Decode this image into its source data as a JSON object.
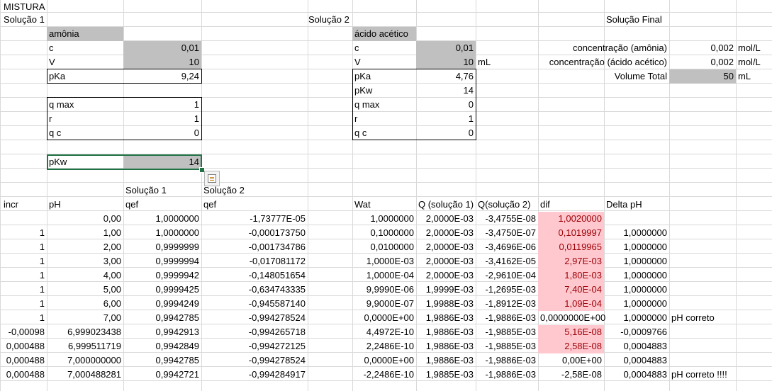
{
  "title": "MISTURA",
  "solucao1": {
    "label": "Solução 1",
    "substance": "amônia",
    "c_label": "c",
    "c": "0,01",
    "V_label": "V",
    "V": "10",
    "pKa_label": "pKa",
    "pKa": "9,24",
    "qmax_label": "q max",
    "qmax": "1",
    "r_label": "r",
    "r": "1",
    "qc_label": "q c",
    "qc": "0",
    "pKw_label": "pKw",
    "pKw": "14"
  },
  "solucao2": {
    "label": "Solução 2",
    "substance": "ácido acético",
    "c_label": "c",
    "c": "0,01",
    "V_label": "V",
    "V": "10",
    "V_unit": "mL",
    "pKa_label": "pKa",
    "pKa": "4,76",
    "pKw_label": "pKw",
    "pKw": "14",
    "qmax_label": "q max",
    "qmax": "0",
    "r_label": "r",
    "r": "1",
    "qc_label": "q c",
    "qc": "0"
  },
  "final": {
    "label": "Solução Final",
    "conc1_label": "concentração (amônia)",
    "conc1": "0,002",
    "conc1_unit": "mol/L",
    "conc2_label": "concentração (ácido acético)",
    "conc2": "0,002",
    "conc2_unit": "mol/L",
    "vol_label": "Volume Total",
    "vol": "50",
    "vol_unit": "mL"
  },
  "table": {
    "group_headers": {
      "solucao1": "Solução 1",
      "solucao2": "Solução 2"
    },
    "headers": [
      "incr",
      "pH",
      "qef",
      "qef",
      "Wat",
      "Q (solução 1)",
      "Q(solução 2)",
      "dif",
      "Delta pH"
    ],
    "rows": [
      [
        "",
        "0,00",
        "1,0000000",
        "-1,73777E-05",
        "1,0000000",
        "2,0000E-03",
        "-3,4755E-08",
        "1,0020000",
        "",
        ""
      ],
      [
        "1",
        "1,00",
        "1,0000000",
        "-0,000173750",
        "0,1000000",
        "2,0000E-03",
        "-3,4750E-07",
        "0,1019997",
        "1,0000000",
        ""
      ],
      [
        "1",
        "2,00",
        "0,9999999",
        "-0,001734786",
        "0,0100000",
        "2,0000E-03",
        "-3,4696E-06",
        "0,0119965",
        "1,0000000",
        ""
      ],
      [
        "1",
        "3,00",
        "0,9999994",
        "-0,017081172",
        "1,0000E-03",
        "2,0000E-03",
        "-3,4162E-05",
        "2,97E-03",
        "1,0000000",
        ""
      ],
      [
        "1",
        "4,00",
        "0,9999942",
        "-0,148051654",
        "1,0000E-04",
        "2,0000E-03",
        "-2,9610E-04",
        "1,80E-03",
        "1,0000000",
        ""
      ],
      [
        "1",
        "5,00",
        "0,9999425",
        "-0,634743335",
        "9,9990E-06",
        "1,9999E-03",
        "-1,2695E-03",
        "7,40E-04",
        "1,0000000",
        ""
      ],
      [
        "1",
        "6,00",
        "0,9994249",
        "-0,945587140",
        "9,9000E-07",
        "1,9988E-03",
        "-1,8912E-03",
        "1,09E-04",
        "1,0000000",
        ""
      ],
      [
        "1",
        "7,00",
        "0,9942785",
        "-0,994278524",
        "0,0000E+00",
        "1,9886E-03",
        "-1,9886E-03",
        "0,0000000E+00",
        "1,0000000",
        "pH correto"
      ],
      [
        "-0,00098",
        "6,999023438",
        "0,9942913",
        "-0,994265718",
        "4,4972E-10",
        "1,9886E-03",
        "-1,9885E-03",
        "5,16E-08",
        "-0,0009766",
        ""
      ],
      [
        "0,000488",
        "6,999511719",
        "0,9942849",
        "-0,994272125",
        "2,2486E-10",
        "1,9886E-03",
        "-1,9885E-03",
        "2,58E-08",
        "0,0004883",
        ""
      ],
      [
        "0,000488",
        "7,000000000",
        "0,9942785",
        "-0,994278524",
        "0,0000E+00",
        "1,9886E-03",
        "-1,9886E-03",
        "0,00E+00",
        "0,0004883",
        ""
      ],
      [
        "0,000488",
        "7,000488281",
        "0,9942721",
        "-0,994284917",
        "-2,2486E-10",
        "1,9885E-03",
        "-1,9886E-03",
        "-2,58E-08",
        "0,0004883",
        "pH correto !!!!"
      ]
    ],
    "pink_rows": [
      0,
      1,
      2,
      3,
      4,
      5,
      6,
      8,
      9
    ],
    "pink_color": "#ffc7ce"
  },
  "selection": {
    "cell": "pKw",
    "color": "#217346"
  },
  "icons": {
    "quick_analysis": "quick-analysis-icon"
  }
}
